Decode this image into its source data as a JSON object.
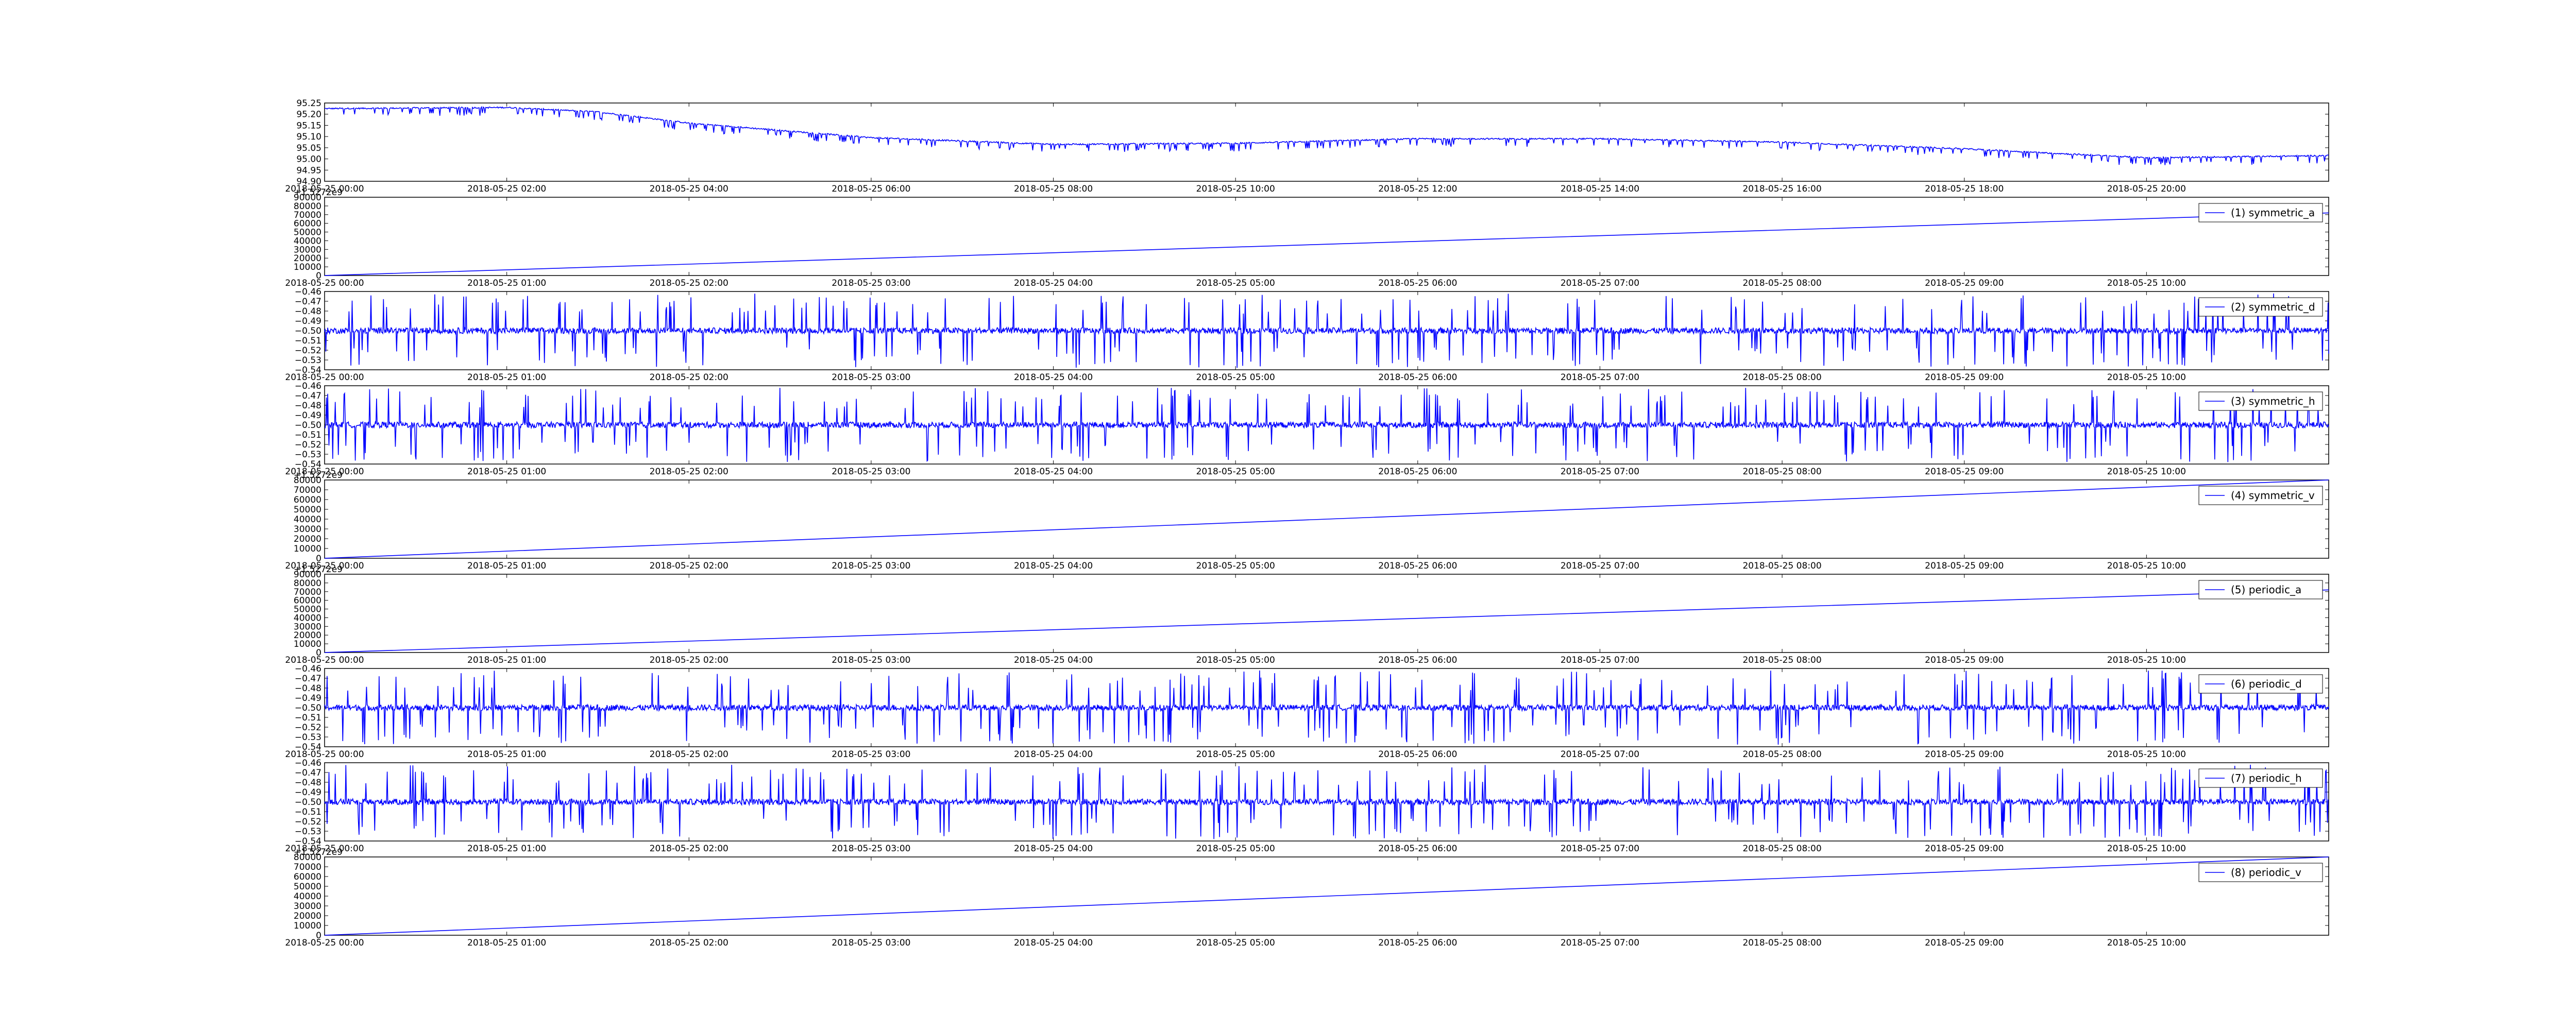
{
  "colors": {
    "line": "#0000ff",
    "axes": "#000000",
    "background": "#ffffff"
  },
  "chart_data": [
    {
      "type": "line",
      "series": [
        {
          "name": "",
          "points": [
            [
              "2018-05-25 00:00",
              95.225
            ],
            [
              "2018-05-25 02:00",
              95.23
            ],
            [
              "2018-05-25 03:00",
              95.21
            ],
            [
              "2018-05-25 04:00",
              95.16
            ],
            [
              "2018-05-25 06:00",
              95.095
            ],
            [
              "2018-05-25 08:00",
              95.065
            ],
            [
              "2018-05-25 10:00",
              95.07
            ],
            [
              "2018-05-25 12:00",
              95.09
            ],
            [
              "2018-05-25 14:00",
              95.09
            ],
            [
              "2018-05-25 16:00",
              95.075
            ],
            [
              "2018-05-25 18:00",
              95.045
            ],
            [
              "2018-05-25 20:00",
              95.005
            ],
            [
              "2018-05-25 22:00",
              95.015
            ]
          ]
        }
      ],
      "xlim": [
        "2018-05-25 00:00",
        "2018-05-25 22:00"
      ],
      "ylim": [
        94.9,
        95.25
      ],
      "x_ticks": [
        "2018-05-25 00:00",
        "2018-05-25 02:00",
        "2018-05-25 04:00",
        "2018-05-25 06:00",
        "2018-05-25 08:00",
        "2018-05-25 10:00",
        "2018-05-25 12:00",
        "2018-05-25 14:00",
        "2018-05-25 16:00",
        "2018-05-25 18:00",
        "2018-05-25 20:00"
      ],
      "y_ticks": [
        "94.90",
        "94.95",
        "95.00",
        "95.05",
        "95.10",
        "95.15",
        "95.20",
        "95.25"
      ],
      "y_offset_label": "",
      "legend": "",
      "spikes": {
        "depth": -0.035,
        "density": "high"
      }
    },
    {
      "type": "line",
      "series": [
        {
          "name": "(1) symmetric_a",
          "points": [
            [
              "2018-05-25 00:00",
              0
            ],
            [
              "2018-05-25 11:00",
              72000
            ]
          ]
        }
      ],
      "xlim": [
        "2018-05-25 00:00",
        "2018-05-25 11:00"
      ],
      "ylim": [
        0,
        90000
      ],
      "x_ticks": [
        "2018-05-25 00:00",
        "2018-05-25 01:00",
        "2018-05-25 02:00",
        "2018-05-25 03:00",
        "2018-05-25 04:00",
        "2018-05-25 05:00",
        "2018-05-25 06:00",
        "2018-05-25 07:00",
        "2018-05-25 08:00",
        "2018-05-25 09:00",
        "2018-05-25 10:00"
      ],
      "y_ticks": [
        "0",
        "10000",
        "20000",
        "30000",
        "40000",
        "50000",
        "60000",
        "70000",
        "80000",
        "90000"
      ],
      "y_offset_label": "+1.5272e9",
      "legend": "top-right"
    },
    {
      "type": "line",
      "series": [
        {
          "name": "(2) symmetric_d",
          "center": -0.5,
          "noise": 0.003,
          "spike_amplitude": 0.038
        }
      ],
      "xlim": [
        "2018-05-25 00:00",
        "2018-05-25 11:00"
      ],
      "ylim": [
        -0.54,
        -0.46
      ],
      "x_ticks": [
        "2018-05-25 00:00",
        "2018-05-25 01:00",
        "2018-05-25 02:00",
        "2018-05-25 03:00",
        "2018-05-25 04:00",
        "2018-05-25 05:00",
        "2018-05-25 06:00",
        "2018-05-25 07:00",
        "2018-05-25 08:00",
        "2018-05-25 09:00",
        "2018-05-25 10:00"
      ],
      "y_ticks": [
        "−0.54",
        "−0.53",
        "−0.52",
        "−0.51",
        "−0.50",
        "−0.49",
        "−0.48",
        "−0.47",
        "−0.46"
      ],
      "y_offset_label": "",
      "legend": "top-right"
    },
    {
      "type": "line",
      "series": [
        {
          "name": "(3) symmetric_h",
          "center": -0.5,
          "noise": 0.003,
          "spike_amplitude": 0.038
        }
      ],
      "xlim": [
        "2018-05-25 00:00",
        "2018-05-25 11:00"
      ],
      "ylim": [
        -0.54,
        -0.46
      ],
      "x_ticks": [
        "2018-05-25 00:00",
        "2018-05-25 01:00",
        "2018-05-25 02:00",
        "2018-05-25 03:00",
        "2018-05-25 04:00",
        "2018-05-25 05:00",
        "2018-05-25 06:00",
        "2018-05-25 07:00",
        "2018-05-25 08:00",
        "2018-05-25 09:00",
        "2018-05-25 10:00"
      ],
      "y_ticks": [
        "−0.54",
        "−0.53",
        "−0.52",
        "−0.51",
        "−0.50",
        "−0.49",
        "−0.48",
        "−0.47",
        "−0.46"
      ],
      "y_offset_label": "",
      "legend": "top-right"
    },
    {
      "type": "line",
      "series": [
        {
          "name": "(4) symmetric_v",
          "points": [
            [
              "2018-05-25 00:00",
              0
            ],
            [
              "2018-05-25 11:00",
              80000
            ]
          ]
        }
      ],
      "xlim": [
        "2018-05-25 00:00",
        "2018-05-25 11:00"
      ],
      "ylim": [
        0,
        80000
      ],
      "x_ticks": [
        "2018-05-25 00:00",
        "2018-05-25 01:00",
        "2018-05-25 02:00",
        "2018-05-25 03:00",
        "2018-05-25 04:00",
        "2018-05-25 05:00",
        "2018-05-25 06:00",
        "2018-05-25 07:00",
        "2018-05-25 08:00",
        "2018-05-25 09:00",
        "2018-05-25 10:00"
      ],
      "y_ticks": [
        "0",
        "10000",
        "20000",
        "30000",
        "40000",
        "50000",
        "60000",
        "70000",
        "80000"
      ],
      "y_offset_label": "+1.5272e9",
      "legend": "top-right"
    },
    {
      "type": "line",
      "series": [
        {
          "name": "(5) periodic_a",
          "points": [
            [
              "2018-05-25 00:00",
              0
            ],
            [
              "2018-05-25 11:00",
              72000
            ]
          ]
        }
      ],
      "xlim": [
        "2018-05-25 00:00",
        "2018-05-25 11:00"
      ],
      "ylim": [
        0,
        90000
      ],
      "x_ticks": [
        "2018-05-25 00:00",
        "2018-05-25 01:00",
        "2018-05-25 02:00",
        "2018-05-25 03:00",
        "2018-05-25 04:00",
        "2018-05-25 05:00",
        "2018-05-25 06:00",
        "2018-05-25 07:00",
        "2018-05-25 08:00",
        "2018-05-25 09:00",
        "2018-05-25 10:00"
      ],
      "y_ticks": [
        "0",
        "10000",
        "20000",
        "30000",
        "40000",
        "50000",
        "60000",
        "70000",
        "80000",
        "90000"
      ],
      "y_offset_label": "+1.5272e9",
      "legend": "top-right"
    },
    {
      "type": "line",
      "series": [
        {
          "name": "(6) periodic_d",
          "center": -0.5,
          "noise": 0.003,
          "spike_amplitude": 0.038
        }
      ],
      "xlim": [
        "2018-05-25 00:00",
        "2018-05-25 11:00"
      ],
      "ylim": [
        -0.54,
        -0.46
      ],
      "x_ticks": [
        "2018-05-25 00:00",
        "2018-05-25 01:00",
        "2018-05-25 02:00",
        "2018-05-25 03:00",
        "2018-05-25 04:00",
        "2018-05-25 05:00",
        "2018-05-25 06:00",
        "2018-05-25 07:00",
        "2018-05-25 08:00",
        "2018-05-25 09:00",
        "2018-05-25 10:00"
      ],
      "y_ticks": [
        "−0.54",
        "−0.53",
        "−0.52",
        "−0.51",
        "−0.50",
        "−0.49",
        "−0.48",
        "−0.47",
        "−0.46"
      ],
      "y_offset_label": "",
      "legend": "top-right"
    },
    {
      "type": "line",
      "series": [
        {
          "name": "(7) periodic_h",
          "center": -0.5,
          "noise": 0.003,
          "spike_amplitude": 0.038
        }
      ],
      "xlim": [
        "2018-05-25 00:00",
        "2018-05-25 11:00"
      ],
      "ylim": [
        -0.54,
        -0.46
      ],
      "x_ticks": [
        "2018-05-25 00:00",
        "2018-05-25 01:00",
        "2018-05-25 02:00",
        "2018-05-25 03:00",
        "2018-05-25 04:00",
        "2018-05-25 05:00",
        "2018-05-25 06:00",
        "2018-05-25 07:00",
        "2018-05-25 08:00",
        "2018-05-25 09:00",
        "2018-05-25 10:00"
      ],
      "y_ticks": [
        "−0.54",
        "−0.53",
        "−0.52",
        "−0.51",
        "−0.50",
        "−0.49",
        "−0.48",
        "−0.47",
        "−0.46"
      ],
      "y_offset_label": "",
      "legend": "top-right"
    },
    {
      "type": "line",
      "series": [
        {
          "name": "(8) periodic_v",
          "points": [
            [
              "2018-05-25 00:00",
              0
            ],
            [
              "2018-05-25 11:00",
              80000
            ]
          ]
        }
      ],
      "xlim": [
        "2018-05-25 00:00",
        "2018-05-25 11:00"
      ],
      "ylim": [
        0,
        80000
      ],
      "x_ticks": [
        "2018-05-25 00:00",
        "2018-05-25 01:00",
        "2018-05-25 02:00",
        "2018-05-25 03:00",
        "2018-05-25 04:00",
        "2018-05-25 05:00",
        "2018-05-25 06:00",
        "2018-05-25 07:00",
        "2018-05-25 08:00",
        "2018-05-25 09:00",
        "2018-05-25 10:00"
      ],
      "y_ticks": [
        "0",
        "10000",
        "20000",
        "30000",
        "40000",
        "50000",
        "60000",
        "70000",
        "80000"
      ],
      "y_offset_label": "+1.5272e9",
      "legend": "top-right"
    }
  ]
}
